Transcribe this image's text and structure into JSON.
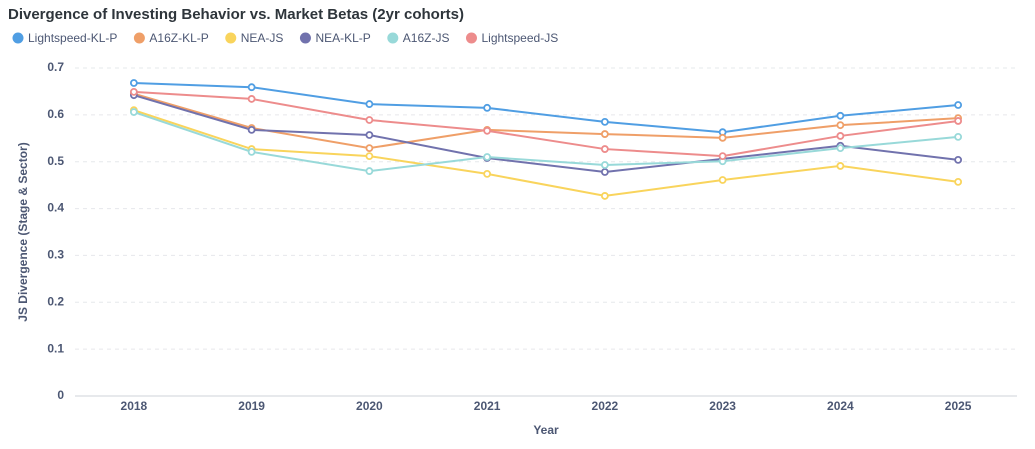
{
  "chart_data": {
    "type": "line",
    "title": "Divergence of Investing Behavior vs. Market Betas (2yr cohorts)",
    "x_label": "Year",
    "y_label": "JS Divergence (Stage & Sector)",
    "categories": [
      "2018",
      "2019",
      "2020",
      "2021",
      "2022",
      "2023",
      "2024",
      "2025"
    ],
    "ylim": [
      0,
      0.7
    ],
    "yticks": [
      0,
      0.1,
      0.2,
      0.3,
      0.4,
      0.5,
      0.6,
      0.7
    ],
    "grid": true,
    "legend": "top-left",
    "series": [
      {
        "name": "Lightspeed-KL-P",
        "color": "#509ee3",
        "values": [
          0.668,
          0.659,
          0.623,
          0.615,
          0.585,
          0.563,
          0.598,
          0.621
        ]
      },
      {
        "name": "A16Z-KL-P",
        "color": "#ef9f68",
        "values": [
          0.645,
          0.572,
          0.529,
          0.568,
          0.559,
          0.551,
          0.578,
          0.593
        ]
      },
      {
        "name": "NEA-JS",
        "color": "#f9d45c",
        "values": [
          0.61,
          0.527,
          0.512,
          0.474,
          0.427,
          0.461,
          0.491,
          0.457
        ]
      },
      {
        "name": "NEA-KL-P",
        "color": "#7172ad",
        "values": [
          0.642,
          0.568,
          0.557,
          0.508,
          0.478,
          0.506,
          0.534,
          0.504
        ]
      },
      {
        "name": "A16Z-JS",
        "color": "#98d9d9",
        "values": [
          0.606,
          0.521,
          0.48,
          0.51,
          0.493,
          0.501,
          0.529,
          0.553
        ]
      },
      {
        "name": "Lightspeed-JS",
        "color": "#ed8c8c",
        "values": [
          0.649,
          0.634,
          0.589,
          0.566,
          0.527,
          0.512,
          0.555,
          0.587
        ]
      }
    ]
  }
}
